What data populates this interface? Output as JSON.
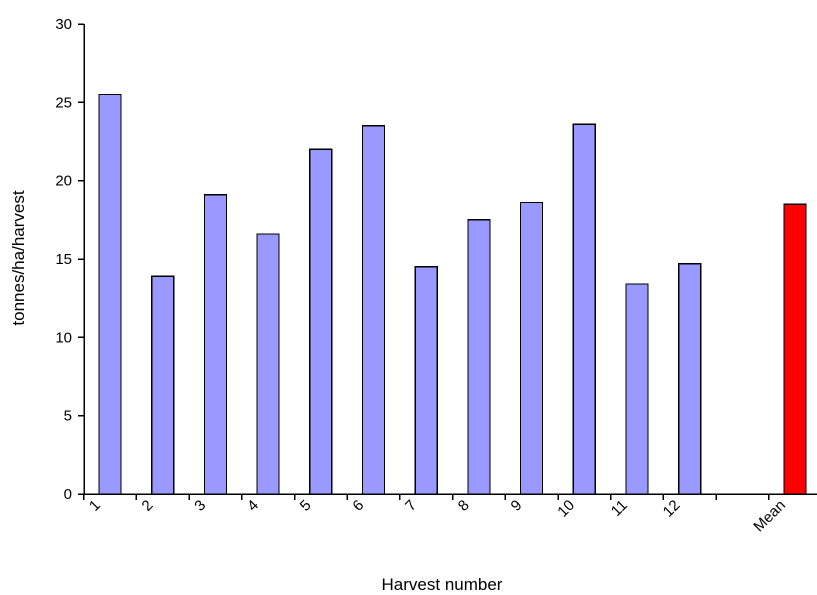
{
  "chart_data": {
    "type": "bar",
    "xlabel": "Harvest number",
    "ylabel": "tonnes/ha/harvest",
    "ylim": [
      0,
      30
    ],
    "yticks": [
      0,
      5,
      10,
      15,
      20,
      25,
      30
    ],
    "grid": false,
    "legend": "none",
    "categories": [
      "1",
      "2",
      "3",
      "4",
      "5",
      "6",
      "7",
      "8",
      "9",
      "10",
      "11",
      "12",
      "",
      "Mean"
    ],
    "values": [
      25.5,
      13.9,
      19.1,
      16.6,
      22.0,
      23.5,
      14.5,
      17.5,
      18.6,
      23.6,
      13.4,
      14.7,
      null,
      18.5
    ],
    "colors": {
      "bar": "#9999ff",
      "mean_bar": "#ff0000",
      "outline": "#000000"
    }
  }
}
